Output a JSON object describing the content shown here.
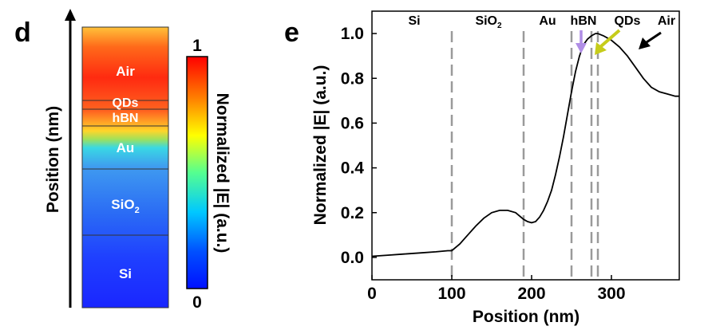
{
  "panel_d": {
    "letter": "d",
    "axis_label": "Position (nm)",
    "layers": [
      "Air",
      "QDs",
      "hBN",
      "Au",
      "SiO",
      "Si"
    ],
    "sio2_subscript": "2",
    "colorbar": {
      "max_label": "1",
      "min_label": "0",
      "title": "Normalized |E| (a.u.)"
    }
  },
  "panel_e": {
    "letter": "e",
    "region_labels": [
      "Si",
      "SiO",
      "Au",
      "hBN",
      "QDs",
      "Air"
    ],
    "sio2_subscript": "2"
  },
  "colors": {
    "line": "#000000",
    "dashed": "#9a9a9a",
    "hbn_arrow": "#b08ee6",
    "qds_arrow": "#c6cc1a",
    "air_arrow": "#000000"
  },
  "chart_data": {
    "type": "line",
    "xlabel": "Position (nm)",
    "ylabel": "Normalized |E| (a.u.)",
    "xlim": [
      0,
      385
    ],
    "ylim": [
      -0.1,
      1.1
    ],
    "xticks": [
      0,
      100,
      200,
      300
    ],
    "yticks": [
      0.0,
      0.2,
      0.4,
      0.6,
      0.8,
      1.0
    ],
    "ytick_labels": [
      "0.0",
      "0.2",
      "0.4",
      "0.6",
      "0.8",
      "1.0"
    ],
    "boundaries": [
      100,
      190,
      250,
      275,
      283
    ],
    "series": [
      {
        "x": [
          0,
          20,
          40,
          60,
          80,
          95,
          100,
          110,
          120,
          130,
          140,
          150,
          160,
          170,
          180,
          190,
          195,
          200,
          205,
          210,
          215,
          220,
          225,
          230,
          235,
          240,
          245,
          250,
          255,
          260,
          265,
          270,
          275,
          280,
          283,
          290,
          300,
          310,
          320,
          330,
          340,
          350,
          360,
          370,
          380,
          385
        ],
        "y": [
          0.005,
          0.01,
          0.015,
          0.02,
          0.025,
          0.03,
          0.03,
          0.06,
          0.1,
          0.14,
          0.175,
          0.2,
          0.21,
          0.21,
          0.2,
          0.17,
          0.16,
          0.155,
          0.16,
          0.18,
          0.21,
          0.25,
          0.3,
          0.37,
          0.45,
          0.54,
          0.64,
          0.74,
          0.83,
          0.9,
          0.95,
          0.975,
          0.99,
          1.0,
          1.0,
          0.99,
          0.97,
          0.94,
          0.9,
          0.85,
          0.8,
          0.76,
          0.74,
          0.73,
          0.72,
          0.72
        ]
      }
    ]
  }
}
